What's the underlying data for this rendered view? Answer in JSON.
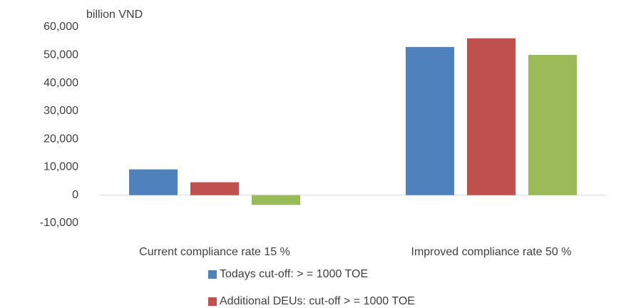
{
  "chart_data": {
    "type": "bar",
    "y_label": "billion VND",
    "categories": [
      "Current compliance rate 15 %",
      "Improved compliance rate 50 %"
    ],
    "series": [
      {
        "name": "Todays cut-off: > = 1000 TOE",
        "color": "#4f81bd",
        "values": [
          9200,
          52900
        ]
      },
      {
        "name": "Additional DEUs: cut-off > = 1000 TOE",
        "color": "#c0504d",
        "values": [
          4600,
          56000
        ]
      },
      {
        "color": "#9bbb59",
        "values": [
          -3500,
          50100
        ]
      }
    ],
    "ylim": [
      -10000,
      60000
    ],
    "yticks": [
      {
        "value": -10000,
        "label": "-10,000"
      },
      0,
      {
        "value": 10000,
        "label": "10,000"
      },
      {
        "value": 20000,
        "label": "20,000"
      },
      {
        "value": 30000,
        "label": "30,000"
      },
      {
        "value": 40000,
        "label": "40,000"
      },
      {
        "value": 50000,
        "label": "50,000"
      },
      {
        "value": 60000,
        "label": "60,000"
      }
    ],
    "grid": false,
    "legend": "bottom"
  }
}
